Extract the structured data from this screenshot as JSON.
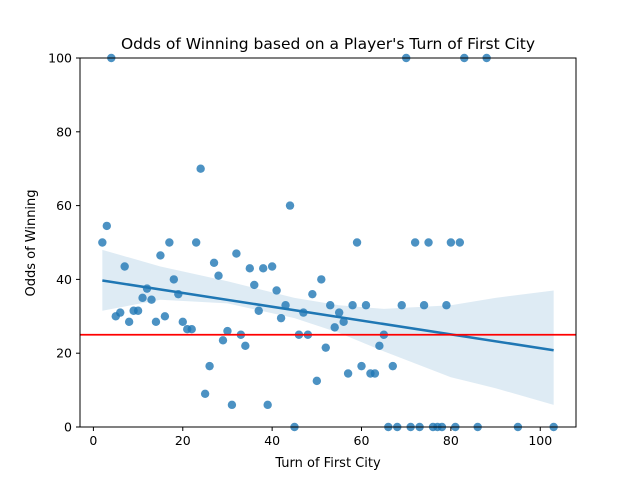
{
  "chart_data": {
    "type": "scatter",
    "title": "Odds of Winning based on a Player's Turn of First City",
    "xlabel": "Turn of First City",
    "ylabel": "Odds of Winning",
    "xlim": [
      -3,
      108
    ],
    "ylim": [
      0,
      100
    ],
    "xticks": [
      0,
      20,
      40,
      60,
      80,
      100
    ],
    "yticks": [
      0,
      20,
      40,
      60,
      80,
      100
    ],
    "grid": false,
    "colors": {
      "points": "#1f77b4",
      "regression_line": "#1f77b4",
      "confidence_band": "#1f77b4",
      "reference_line": "#ff0000"
    },
    "points": [
      {
        "x": 2,
        "y": 50
      },
      {
        "x": 3,
        "y": 54.5
      },
      {
        "x": 4,
        "y": 100
      },
      {
        "x": 5,
        "y": 30
      },
      {
        "x": 6,
        "y": 31
      },
      {
        "x": 7,
        "y": 43.5
      },
      {
        "x": 8,
        "y": 28.5
      },
      {
        "x": 9,
        "y": 31.5
      },
      {
        "x": 10,
        "y": 31.5
      },
      {
        "x": 11,
        "y": 35
      },
      {
        "x": 12,
        "y": 37.5
      },
      {
        "x": 13,
        "y": 34.5
      },
      {
        "x": 14,
        "y": 28.5
      },
      {
        "x": 15,
        "y": 46.5
      },
      {
        "x": 16,
        "y": 30
      },
      {
        "x": 17,
        "y": 50
      },
      {
        "x": 18,
        "y": 40
      },
      {
        "x": 19,
        "y": 36
      },
      {
        "x": 20,
        "y": 28.5
      },
      {
        "x": 21,
        "y": 26.5
      },
      {
        "x": 22,
        "y": 26.5
      },
      {
        "x": 23,
        "y": 50
      },
      {
        "x": 24,
        "y": 70
      },
      {
        "x": 25,
        "y": 9
      },
      {
        "x": 26,
        "y": 16.5
      },
      {
        "x": 27,
        "y": 44.5
      },
      {
        "x": 28,
        "y": 41
      },
      {
        "x": 29,
        "y": 23.5
      },
      {
        "x": 30,
        "y": 26
      },
      {
        "x": 31,
        "y": 6
      },
      {
        "x": 32,
        "y": 47
      },
      {
        "x": 33,
        "y": 25
      },
      {
        "x": 34,
        "y": 22
      },
      {
        "x": 35,
        "y": 43
      },
      {
        "x": 36,
        "y": 38.5
      },
      {
        "x": 37,
        "y": 31.5
      },
      {
        "x": 38,
        "y": 43
      },
      {
        "x": 39,
        "y": 6
      },
      {
        "x": 40,
        "y": 43.5
      },
      {
        "x": 41,
        "y": 37
      },
      {
        "x": 42,
        "y": 29.5
      },
      {
        "x": 43,
        "y": 33
      },
      {
        "x": 44,
        "y": 60
      },
      {
        "x": 45,
        "y": 0
      },
      {
        "x": 46,
        "y": 25
      },
      {
        "x": 47,
        "y": 31
      },
      {
        "x": 48,
        "y": 25
      },
      {
        "x": 49,
        "y": 36
      },
      {
        "x": 50,
        "y": 12.5
      },
      {
        "x": 51,
        "y": 40
      },
      {
        "x": 52,
        "y": 21.5
      },
      {
        "x": 53,
        "y": 33
      },
      {
        "x": 54,
        "y": 27
      },
      {
        "x": 55,
        "y": 31
      },
      {
        "x": 56,
        "y": 28.5
      },
      {
        "x": 57,
        "y": 14.5
      },
      {
        "x": 58,
        "y": 33
      },
      {
        "x": 59,
        "y": 50
      },
      {
        "x": 60,
        "y": 16.5
      },
      {
        "x": 61,
        "y": 33
      },
      {
        "x": 62,
        "y": 14.5
      },
      {
        "x": 63,
        "y": 14.5
      },
      {
        "x": 64,
        "y": 22
      },
      {
        "x": 65,
        "y": 25
      },
      {
        "x": 66,
        "y": 0
      },
      {
        "x": 67,
        "y": 16.5
      },
      {
        "x": 68,
        "y": 0
      },
      {
        "x": 69,
        "y": 33
      },
      {
        "x": 70,
        "y": 100
      },
      {
        "x": 71,
        "y": 0
      },
      {
        "x": 72,
        "y": 50
      },
      {
        "x": 73,
        "y": 0
      },
      {
        "x": 74,
        "y": 33
      },
      {
        "x": 75,
        "y": 50
      },
      {
        "x": 76,
        "y": 0
      },
      {
        "x": 77,
        "y": 0
      },
      {
        "x": 78,
        "y": 0
      },
      {
        "x": 79,
        "y": 33
      },
      {
        "x": 80,
        "y": 50
      },
      {
        "x": 81,
        "y": 0
      },
      {
        "x": 82,
        "y": 50
      },
      {
        "x": 83,
        "y": 100
      },
      {
        "x": 86,
        "y": 0
      },
      {
        "x": 88,
        "y": 100
      },
      {
        "x": 95,
        "y": 0
      },
      {
        "x": 103,
        "y": 0
      }
    ],
    "regression_line": {
      "x_start": 2,
      "y_start": 39.7,
      "x_end": 103,
      "y_end": 20.8
    },
    "confidence_band": [
      {
        "x": 2,
        "lower": 31.5,
        "upper": 48
      },
      {
        "x": 15,
        "lower": 34.5,
        "upper": 43.5
      },
      {
        "x": 30,
        "lower": 33.5,
        "upper": 39.5
      },
      {
        "x": 45,
        "lower": 29.5,
        "upper": 35
      },
      {
        "x": 55,
        "lower": 25.5,
        "upper": 33
      },
      {
        "x": 65,
        "lower": 20.5,
        "upper": 32
      },
      {
        "x": 80,
        "lower": 13.5,
        "upper": 33
      },
      {
        "x": 90,
        "lower": 10.5,
        "upper": 35
      },
      {
        "x": 103,
        "lower": 6,
        "upper": 37
      }
    ],
    "reference_line": {
      "y": 25
    }
  }
}
